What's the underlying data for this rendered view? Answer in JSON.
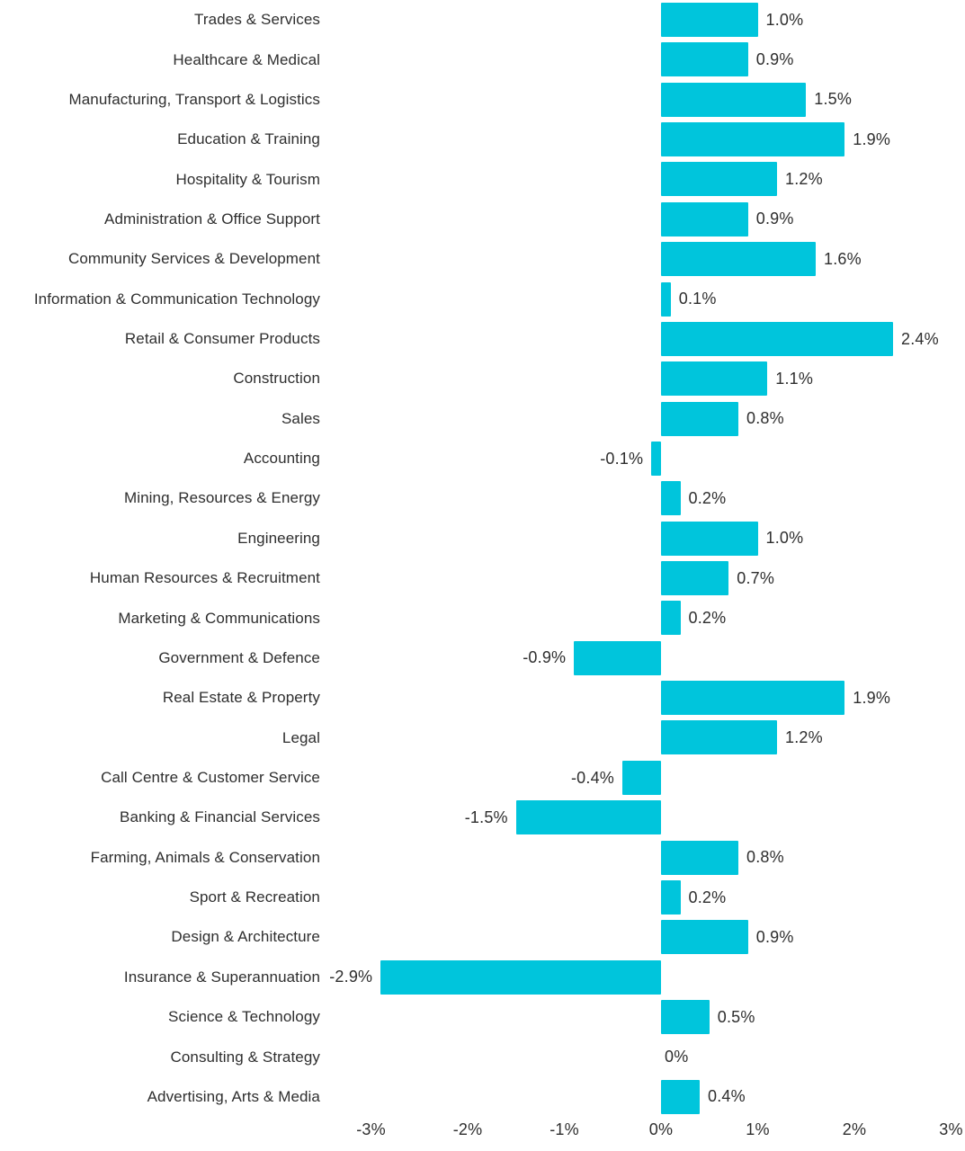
{
  "chart_data": {
    "type": "bar",
    "orientation": "horizontal",
    "title": "",
    "xlabel": "",
    "ylabel": "",
    "grid": false,
    "legend": "none",
    "bar_color": "#00c5dc",
    "text_color": "#2e2e2e",
    "background_color": "#ffffff",
    "xlim": [
      -3.4,
      3.15
    ],
    "x_tick_labels": [
      "-3%",
      "-2%",
      "-1%",
      "0%",
      "1%",
      "2%",
      "3%"
    ],
    "x_tick_values": [
      -3,
      -2,
      -1,
      0,
      1,
      2,
      3
    ],
    "categories": [
      "Trades & Services",
      "Healthcare & Medical",
      "Manufacturing, Transport & Logistics",
      "Education & Training",
      "Hospitality & Tourism",
      "Administration & Office Support",
      "Community Services & Development",
      "Information & Communication Technology",
      "Retail & Consumer Products",
      "Construction",
      "Sales",
      "Accounting",
      "Mining, Resources & Energy",
      "Engineering",
      "Human Resources & Recruitment",
      "Marketing & Communications",
      "Government & Defence",
      "Real Estate & Property",
      "Legal",
      "Call Centre & Customer Service",
      "Banking & Financial Services",
      "Farming, Animals & Conservation",
      "Sport & Recreation",
      "Design & Architecture",
      "Insurance & Superannuation",
      "Science & Technology",
      "Consulting & Strategy",
      "Advertising, Arts & Media"
    ],
    "values": [
      1.0,
      0.9,
      1.5,
      1.9,
      1.2,
      0.9,
      1.6,
      0.1,
      2.4,
      1.1,
      0.8,
      -0.1,
      0.2,
      1.0,
      0.7,
      0.2,
      -0.9,
      1.9,
      1.2,
      -0.4,
      -1.5,
      0.8,
      0.2,
      0.9,
      -2.9,
      0.5,
      0,
      0.4
    ],
    "value_labels": [
      "1.0%",
      "0.9%",
      "1.5%",
      "1.9%",
      "1.2%",
      "0.9%",
      "1.6%",
      "0.1%",
      "2.4%",
      "1.1%",
      "0.8%",
      "-0.1%",
      "0.2%",
      "1.0%",
      "0.7%",
      "0.2%",
      "-0.9%",
      "1.9%",
      "1.2%",
      "-0.4%",
      "-1.5%",
      "0.8%",
      "0.2%",
      "0.9%",
      "-2.9%",
      "0.5%",
      "0%",
      "0.4%"
    ]
  }
}
